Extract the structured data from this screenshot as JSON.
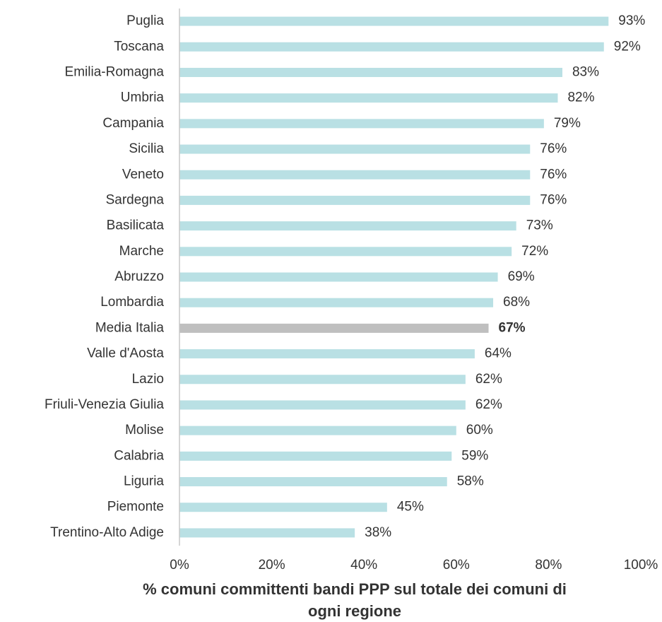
{
  "chart_data": {
    "type": "barh",
    "categories": [
      "Puglia",
      "Toscana",
      "Emilia-Romagna",
      "Umbria",
      "Campania",
      "Sicilia",
      "Veneto",
      "Sardegna",
      "Basilicata",
      "Marche",
      "Abruzzo",
      "Lombardia",
      "Media Italia",
      "Valle d'Aosta",
      "Lazio",
      "Friuli-Venezia Giulia",
      "Molise",
      "Calabria",
      "Liguria",
      "Piemonte",
      "Trentino-Alto Adige"
    ],
    "values": [
      93,
      92,
      83,
      82,
      79,
      76,
      76,
      76,
      73,
      72,
      69,
      68,
      67,
      64,
      62,
      62,
      60,
      59,
      58,
      45,
      38
    ],
    "value_labels": [
      "93%",
      "92%",
      "83%",
      "82%",
      "79%",
      "76%",
      "76%",
      "76%",
      "73%",
      "72%",
      "69%",
      "68%",
      "67%",
      "64%",
      "62%",
      "62%",
      "60%",
      "59%",
      "58%",
      "45%",
      "38%"
    ],
    "colors": [
      "#b9e0e4",
      "#b9e0e4",
      "#b9e0e4",
      "#b9e0e4",
      "#b9e0e4",
      "#b9e0e4",
      "#b9e0e4",
      "#b9e0e4",
      "#b9e0e4",
      "#b9e0e4",
      "#b9e0e4",
      "#b9e0e4",
      "#bfbfbf",
      "#b9e0e4",
      "#b9e0e4",
      "#b9e0e4",
      "#b9e0e4",
      "#b9e0e4",
      "#b9e0e4",
      "#b9e0e4",
      "#b9e0e4"
    ],
    "label_weights": [
      "normal",
      "normal",
      "normal",
      "normal",
      "normal",
      "normal",
      "normal",
      "normal",
      "normal",
      "normal",
      "normal",
      "normal",
      "bold",
      "normal",
      "normal",
      "normal",
      "normal",
      "normal",
      "normal",
      "normal",
      "normal"
    ],
    "xlim": [
      0,
      100
    ],
    "xticks": [
      {
        "value": 0,
        "label": "0%"
      },
      {
        "value": 20,
        "label": "20%"
      },
      {
        "value": 40,
        "label": "40%"
      },
      {
        "value": 60,
        "label": "60%"
      },
      {
        "value": 80,
        "label": "80%"
      },
      {
        "value": 100,
        "label": "100%"
      }
    ],
    "xlabel": [
      "% comuni committenti bandi PPP sul totale dei comuni di",
      "ogni regione"
    ],
    "grid": false
  }
}
